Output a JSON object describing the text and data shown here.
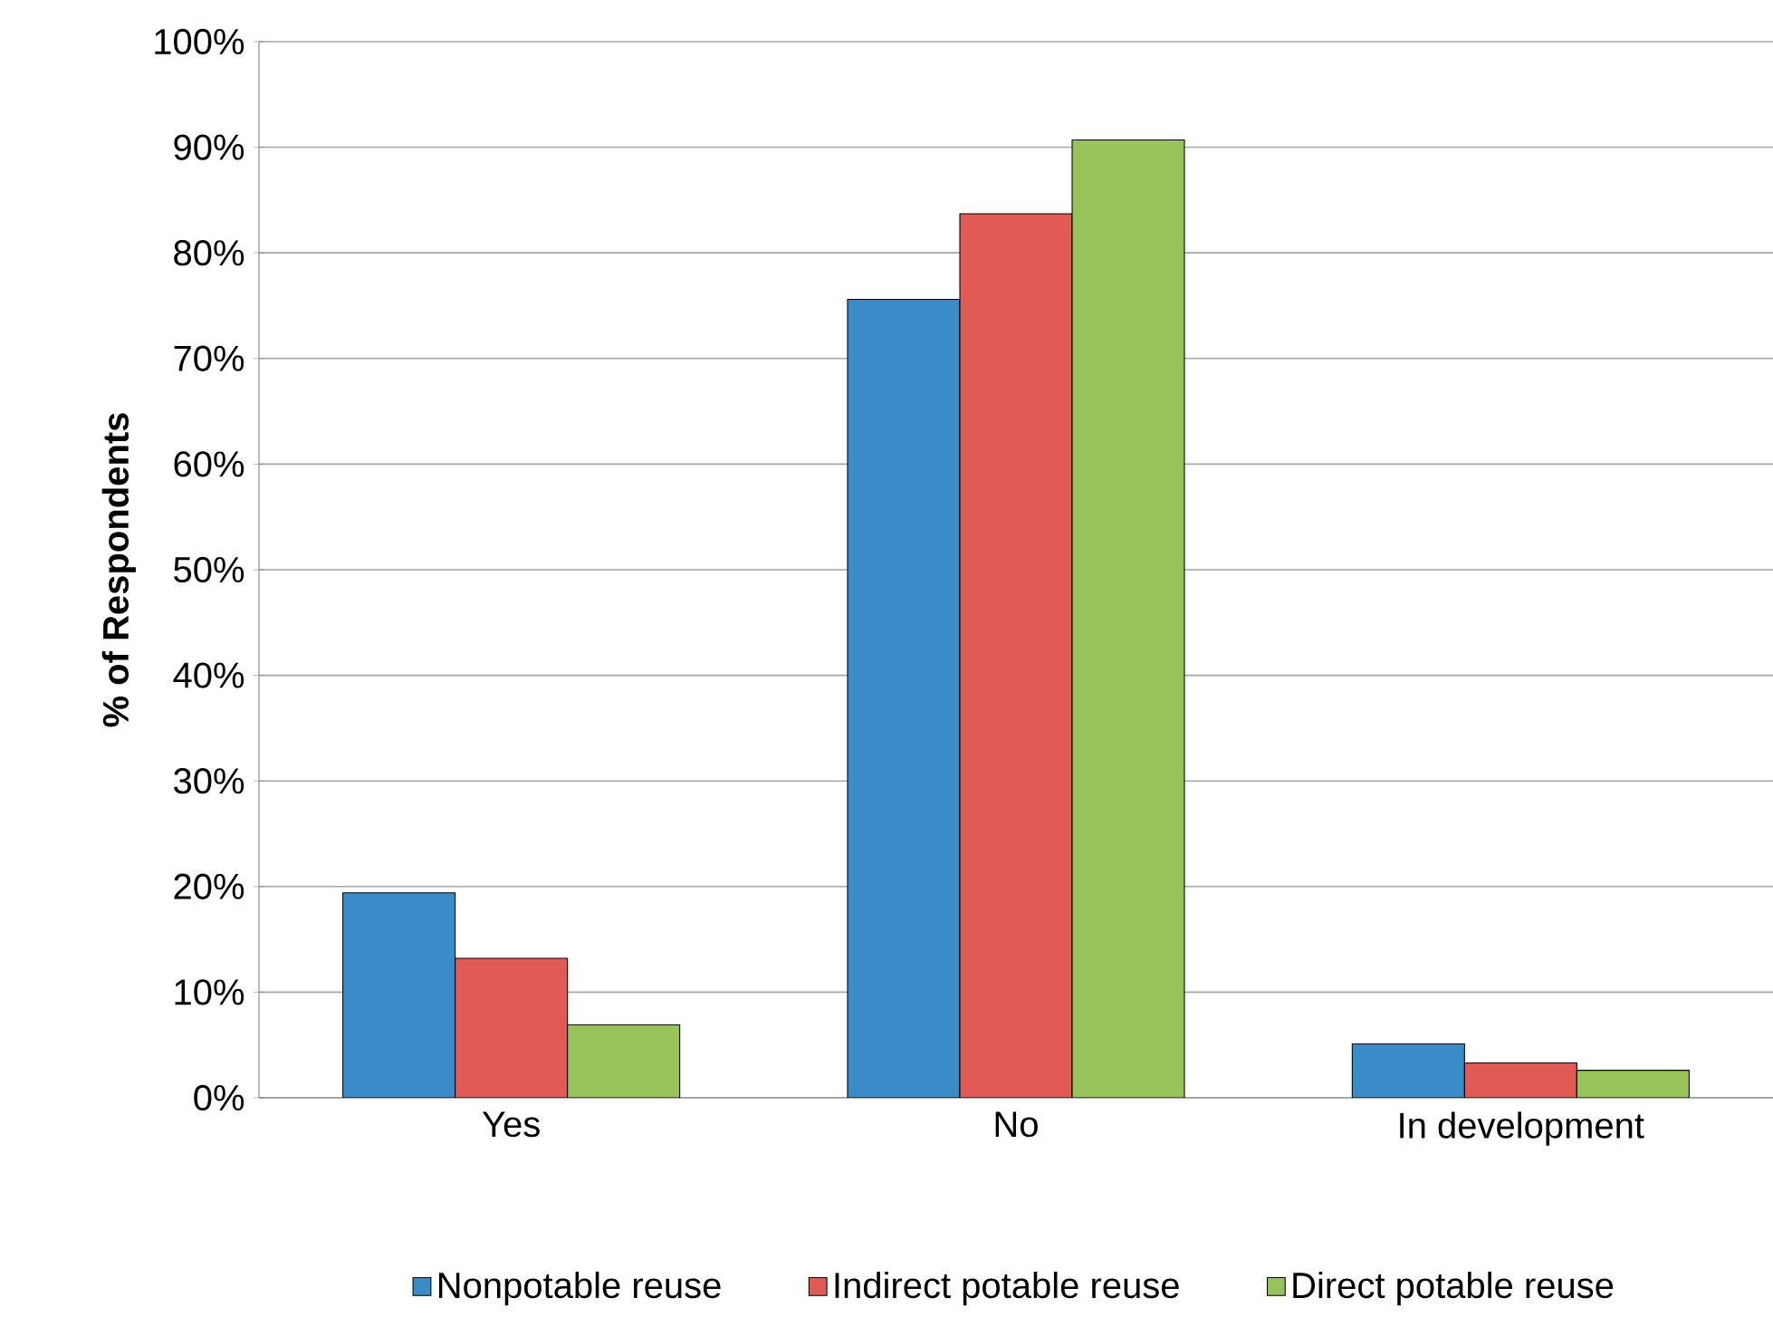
{
  "chart_data": {
    "type": "bar",
    "ylabel": "% of Respondents",
    "categories": [
      "Yes",
      "No",
      "In development"
    ],
    "series": [
      {
        "name": "Nonpotable reuse",
        "color": "#3a8cc8",
        "values": [
          19.4,
          75.6,
          5.1
        ]
      },
      {
        "name": "Indirect potable reuse",
        "color": "#e05a56",
        "values": [
          13.2,
          83.7,
          3.3
        ]
      },
      {
        "name": "Direct potable reuse",
        "color": "#96c45a",
        "values": [
          6.9,
          90.7,
          2.6
        ]
      }
    ],
    "ylim": [
      0,
      100
    ],
    "yticks": [
      {
        "value": 0,
        "label": "0%"
      },
      {
        "value": 10,
        "label": "10%"
      },
      {
        "value": 20,
        "label": "20%"
      },
      {
        "value": 30,
        "label": "30%"
      },
      {
        "value": 40,
        "label": "40%"
      },
      {
        "value": 50,
        "label": "50%"
      },
      {
        "value": 60,
        "label": "60%"
      },
      {
        "value": 70,
        "label": "70%"
      },
      {
        "value": 80,
        "label": "80%"
      },
      {
        "value": 90,
        "label": "90%"
      },
      {
        "value": 100,
        "label": "100%"
      }
    ],
    "grid": "y",
    "legend": "bottom"
  }
}
